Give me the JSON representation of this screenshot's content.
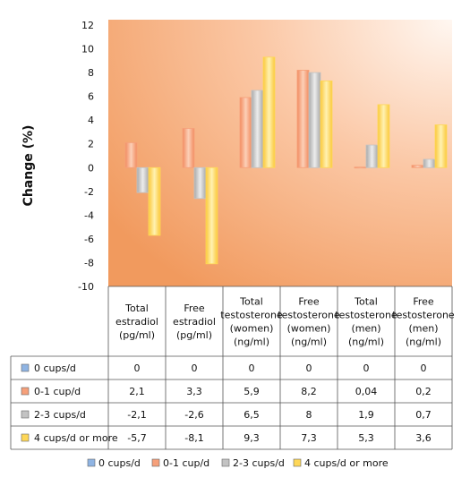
{
  "chart_data": {
    "type": "bar",
    "ylabel": "Change  (%)",
    "ylim": [
      -10,
      12
    ],
    "yticks": [
      12,
      10,
      8,
      6,
      4,
      2,
      0,
      -2,
      -4,
      -6,
      -8,
      -10
    ],
    "grid": false,
    "legend_position": "bottom",
    "categories": [
      [
        "Total",
        "estradiol",
        "(pg/ml)"
      ],
      [
        "Free",
        "estradiol",
        "(pg/ml)"
      ],
      [
        "Total",
        "testosterone",
        "(women)",
        "(ng/ml)"
      ],
      [
        "Free",
        "testosterone",
        "(women)",
        "(ng/ml)"
      ],
      [
        "Total",
        "testosterone",
        "(men)",
        "(ng/ml)"
      ],
      [
        "Free",
        "testosterone",
        "(men)",
        "(ng/ml)"
      ]
    ],
    "series": [
      {
        "name": "0 cups/d",
        "color": "#8fb4e3",
        "values": [
          0,
          0,
          0,
          0,
          0,
          0
        ],
        "labels": [
          "0",
          "0",
          "0",
          "0",
          "0",
          "0"
        ]
      },
      {
        "name": "0-1 cup/d",
        "color": "#f6a07a",
        "values": [
          2.1,
          3.3,
          5.9,
          8.2,
          0.04,
          0.2
        ],
        "labels": [
          "2,1",
          "3,3",
          "5,9",
          "8,2",
          "0,04",
          "0,2"
        ]
      },
      {
        "name": "2-3 cups/d",
        "color": "#c3c3c3",
        "values": [
          -2.1,
          -2.6,
          6.5,
          8,
          1.9,
          0.7
        ],
        "labels": [
          "-2,1",
          "-2,6",
          "6,5",
          "8",
          "1,9",
          "0,7"
        ]
      },
      {
        "name": "4 cups/d or more",
        "color": "#fed758",
        "values": [
          -5.7,
          -8.1,
          9.3,
          7.3,
          5.3,
          3.6
        ],
        "labels": [
          "-5,7",
          "-8,1",
          "9,3",
          "7,3",
          "5,3",
          "3,6"
        ]
      }
    ]
  }
}
